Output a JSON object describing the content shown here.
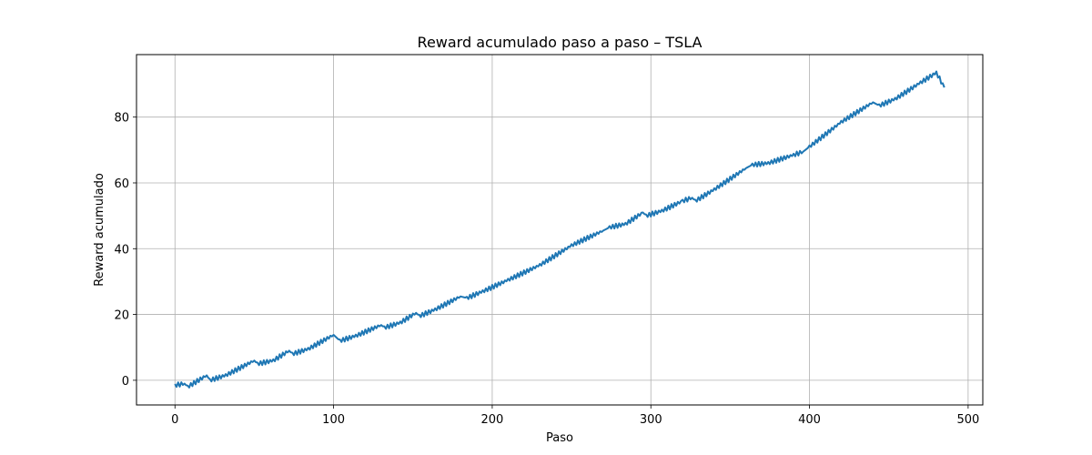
{
  "chart_data": {
    "type": "line",
    "title": "Reward acumulado paso a paso – TSLA",
    "xlabel": "Paso",
    "ylabel": "Reward acumulado",
    "xlim": [
      -24.25,
      509.25
    ],
    "ylim": [
      -7.5,
      99
    ],
    "xticks": [
      0,
      100,
      200,
      300,
      400,
      500
    ],
    "yticks": [
      0,
      20,
      40,
      60,
      80
    ],
    "grid": true,
    "legend": "none",
    "series": [
      {
        "color": "#1f77b4",
        "x": [
          0,
          6,
          8,
          20,
          22,
          32,
          50,
          52,
          62,
          72,
          74,
          84,
          100,
          104,
          114,
          130,
          132,
          142,
          152,
          154,
          164,
          180,
          184,
          194,
          210,
          230,
          250,
          270,
          274,
          284,
          295,
          297,
          307,
          320,
          326,
          328,
          340,
          360,
          364,
          374,
          390,
          396,
          400,
          420,
          440,
          444,
          454,
          470,
          480,
          485
        ],
        "y": [
          -1.5,
          -1.0,
          -2.0,
          1.5,
          0.0,
          1.5,
          6.0,
          5.0,
          6.0,
          9.0,
          8.0,
          9.5,
          13.8,
          12.0,
          13.5,
          16.8,
          16.0,
          17.5,
          20.5,
          19.5,
          21.5,
          25.5,
          25.0,
          27.0,
          30.5,
          35.0,
          41.0,
          45.5,
          46.5,
          47.5,
          51.0,
          50.0,
          51.5,
          54.5,
          55.5,
          54.5,
          58.0,
          64.5,
          65.5,
          66.0,
          68.5,
          69.5,
          71.0,
          78.5,
          84.5,
          83.5,
          85.5,
          90.5,
          93.5,
          89.0
        ]
      }
    ]
  }
}
